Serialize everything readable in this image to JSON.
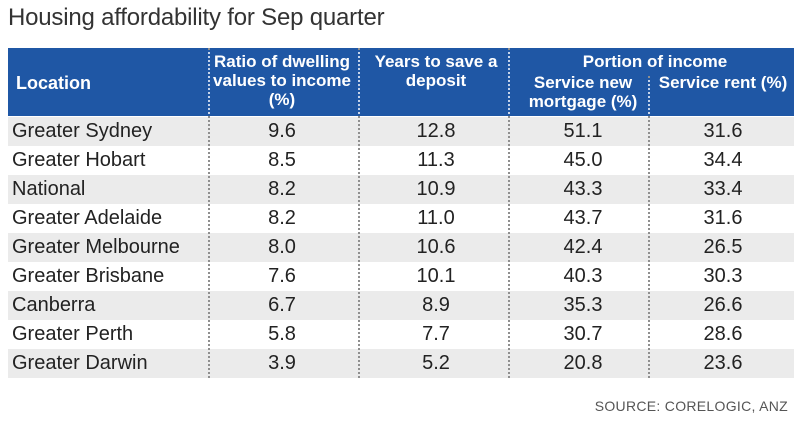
{
  "title": "Housing affordability for Sep quarter",
  "source": "SOURCE: CORELOGIC, ANZ",
  "colors": {
    "header_bg": "#1f57a5",
    "row_shade": "#ebebeb"
  },
  "chart_data": {
    "type": "table",
    "title": "Housing affordability for Sep quarter",
    "group_header": "Portion of income",
    "columns": [
      "Location",
      "Ratio of dwelling values to income (%)",
      "Years to save a deposit",
      "Service new mortgage (%)",
      "Service rent (%)"
    ],
    "rows": [
      [
        "Greater Sydney",
        "9.6",
        "12.8",
        "51.1",
        "31.6"
      ],
      [
        "Greater Hobart",
        "8.5",
        "11.3",
        "45.0",
        "34.4"
      ],
      [
        "National",
        "8.2",
        "10.9",
        "43.3",
        "33.4"
      ],
      [
        "Greater Adelaide",
        "8.2",
        "11.0",
        "43.7",
        "31.6"
      ],
      [
        "Greater Melbourne",
        "8.0",
        "10.6",
        "42.4",
        "26.5"
      ],
      [
        "Greater Brisbane",
        "7.6",
        "10.1",
        "40.3",
        "30.3"
      ],
      [
        "Canberra",
        "6.7",
        "8.9",
        "35.3",
        "26.6"
      ],
      [
        "Greater Perth",
        "5.8",
        "7.7",
        "30.7",
        "28.6"
      ],
      [
        "Greater Darwin",
        "3.9",
        "5.2",
        "20.8",
        "23.6"
      ]
    ]
  }
}
